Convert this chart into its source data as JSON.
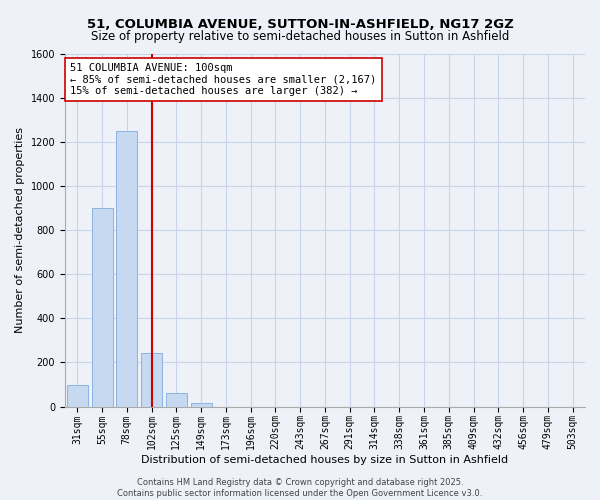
{
  "title": "51, COLUMBIA AVENUE, SUTTON-IN-ASHFIELD, NG17 2GZ",
  "subtitle": "Size of property relative to semi-detached houses in Sutton in Ashfield",
  "xlabel": "Distribution of semi-detached houses by size in Sutton in Ashfield",
  "ylabel": "Number of semi-detached properties",
  "bar_labels": [
    "31sqm",
    "55sqm",
    "78sqm",
    "102sqm",
    "125sqm",
    "149sqm",
    "173sqm",
    "196sqm",
    "220sqm",
    "243sqm",
    "267sqm",
    "291sqm",
    "314sqm",
    "338sqm",
    "361sqm",
    "385sqm",
    "409sqm",
    "432sqm",
    "456sqm",
    "479sqm",
    "503sqm"
  ],
  "bar_values": [
    100,
    900,
    1250,
    245,
    60,
    15,
    0,
    0,
    0,
    0,
    0,
    0,
    0,
    0,
    0,
    0,
    0,
    0,
    0,
    0,
    0
  ],
  "bar_color": "#c6d9f0",
  "bar_edge_color": "#8db3e2",
  "vline_x_index": 3,
  "vline_color": "#cc0000",
  "ylim": [
    0,
    1600
  ],
  "yticks": [
    0,
    200,
    400,
    600,
    800,
    1000,
    1200,
    1400,
    1600
  ],
  "annotation_box_title": "51 COLUMBIA AVENUE: 100sqm",
  "annotation_line1": "← 85% of semi-detached houses are smaller (2,167)",
  "annotation_line2": "15% of semi-detached houses are larger (382) →",
  "copyright_text": "Contains HM Land Registry data © Crown copyright and database right 2025.\nContains public sector information licensed under the Open Government Licence v3.0.",
  "background_color": "#eef2f8",
  "grid_color": "#d0d8e8",
  "title_fontsize": 9.5,
  "subtitle_fontsize": 8.5,
  "tick_fontsize": 7,
  "label_fontsize": 8,
  "annot_fontsize": 7.5,
  "copyright_fontsize": 6
}
